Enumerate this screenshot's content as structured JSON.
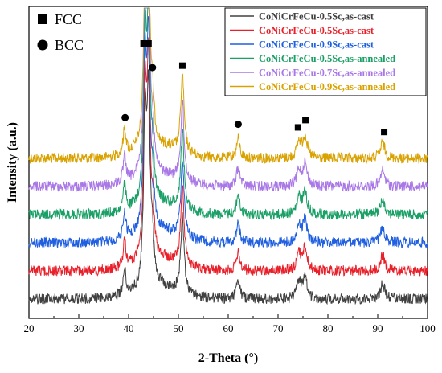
{
  "chart_data": {
    "type": "line",
    "title": "",
    "xlabel": "2-Theta (°)",
    "ylabel": "Intensity (a.u.)",
    "xlim": [
      20,
      100
    ],
    "xticks": [
      20,
      30,
      40,
      50,
      60,
      70,
      80,
      90,
      100
    ],
    "y_ticks_shown": false,
    "grid": false,
    "legend_position": "top-right",
    "series": [
      {
        "name": "CoNiCrFeCu-0.5Sc,as-cast",
        "color": "#404040",
        "baseline": 0
      },
      {
        "name": "CoNiCrFeCu-0.5Sc,as-cast",
        "color": "#e8202a",
        "baseline": 1
      },
      {
        "name": "CoNiCrFeCu-0.9Sc,as-cast",
        "color": "#1f5fe0",
        "baseline": 2
      },
      {
        "name": "CoNiCrFeCu-0.5Sc,as-annealed",
        "color": "#1aa066",
        "baseline": 3
      },
      {
        "name": "CoNiCrFeCu-0.7Sc,as-annealed",
        "color": "#a978e6",
        "baseline": 4
      },
      {
        "name": "CoNiCrFeCu-0.9Sc,as-annealed",
        "color": "#d9a200",
        "baseline": 5
      }
    ],
    "peaks": [
      {
        "x": 39.2,
        "height": 0.8,
        "width": 0.35
      },
      {
        "x": 43.3,
        "height": 5.0,
        "width": 0.35
      },
      {
        "x": 44.0,
        "height": 5.6,
        "width": 0.35
      },
      {
        "x": 44.8,
        "height": 1.2,
        "width": 0.4
      },
      {
        "x": 50.8,
        "height": 2.4,
        "width": 0.4
      },
      {
        "x": 62.0,
        "height": 0.6,
        "width": 0.4
      },
      {
        "x": 74.2,
        "height": 0.5,
        "width": 0.5
      },
      {
        "x": 75.4,
        "height": 0.7,
        "width": 0.5
      },
      {
        "x": 91.0,
        "height": 0.5,
        "width": 0.5
      }
    ],
    "markers": [
      {
        "phase": "BCC",
        "x": 39.3
      },
      {
        "phase": "FCC",
        "x": 43.0
      },
      {
        "phase": "FCC",
        "x": 44.0
      },
      {
        "phase": "BCC",
        "x": 44.8
      },
      {
        "phase": "FCC",
        "x": 50.8
      },
      {
        "phase": "BCC",
        "x": 62.0
      },
      {
        "phase": "FCC",
        "x": 74.0
      },
      {
        "phase": "FCC",
        "x": 75.5
      },
      {
        "phase": "FCC",
        "x": 91.3
      }
    ],
    "marker_legend": [
      {
        "symbol": "square",
        "label": "FCC"
      },
      {
        "symbol": "circle",
        "label": "BCC"
      }
    ]
  }
}
